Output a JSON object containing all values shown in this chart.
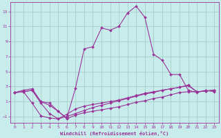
{
  "xlabel": "Windchill (Refroidissement éolien,°C)",
  "xlim": [
    -0.5,
    23.5
  ],
  "ylim": [
    -1.8,
    14.2
  ],
  "yticks": [
    -1,
    1,
    3,
    5,
    7,
    9,
    11,
    13
  ],
  "xticks": [
    0,
    1,
    2,
    3,
    4,
    5,
    6,
    7,
    8,
    9,
    10,
    11,
    12,
    13,
    14,
    15,
    16,
    17,
    18,
    19,
    20,
    21,
    22,
    23
  ],
  "background_color": "#c8ecec",
  "line_color": "#993399",
  "grid_color": "#99ccbb",
  "line1_x": [
    0,
    1,
    2,
    3,
    4,
    5,
    6,
    7,
    8,
    9,
    10,
    11,
    12,
    13,
    14,
    15,
    16,
    17,
    18,
    19,
    20,
    21,
    22,
    23
  ],
  "line1_y": [
    2.2,
    2.5,
    2.7,
    1.0,
    0.5,
    -0.3,
    -1.2,
    2.8,
    8.0,
    8.3,
    10.8,
    10.5,
    11.0,
    12.8,
    13.7,
    12.2,
    7.3,
    6.5,
    4.6,
    4.6,
    2.5,
    2.2,
    2.5,
    2.3
  ],
  "line2_x": [
    0,
    1,
    2,
    3,
    4,
    5,
    6,
    7,
    8,
    9,
    10,
    11,
    12,
    13,
    14,
    15,
    16,
    17,
    18,
    19,
    20,
    21,
    22,
    23
  ],
  "line2_y": [
    2.2,
    2.3,
    2.5,
    1.0,
    0.8,
    -0.3,
    -1.3,
    -0.8,
    -0.5,
    -0.3,
    -0.1,
    0.1,
    0.3,
    0.6,
    0.9,
    1.1,
    1.4,
    1.6,
    1.9,
    2.2,
    2.3,
    2.3,
    2.4,
    2.5
  ],
  "line3_x": [
    0,
    1,
    2,
    3,
    4,
    5,
    6,
    7,
    8,
    9,
    10,
    11,
    12,
    13,
    14,
    15,
    16,
    17,
    18,
    19,
    20,
    21,
    22,
    23
  ],
  "line3_y": [
    2.2,
    2.3,
    2.5,
    0.8,
    -0.6,
    -1.3,
    -1.0,
    -0.6,
    -0.2,
    0.2,
    0.5,
    0.8,
    1.1,
    1.4,
    1.7,
    2.0,
    2.2,
    2.5,
    2.7,
    2.9,
    3.1,
    2.3,
    2.4,
    2.5
  ],
  "line4_x": [
    0,
    1,
    2,
    3,
    4,
    5,
    6,
    7,
    8,
    9,
    10,
    11,
    12,
    13,
    14,
    15,
    16,
    17,
    18,
    19,
    20,
    21,
    22,
    23
  ],
  "line4_y": [
    2.2,
    2.3,
    0.8,
    -0.9,
    -1.2,
    -1.3,
    -0.7,
    0.0,
    0.4,
    0.6,
    0.8,
    1.0,
    1.2,
    1.5,
    1.8,
    2.1,
    2.3,
    2.5,
    2.7,
    2.9,
    3.2,
    2.3,
    2.4,
    2.5
  ]
}
